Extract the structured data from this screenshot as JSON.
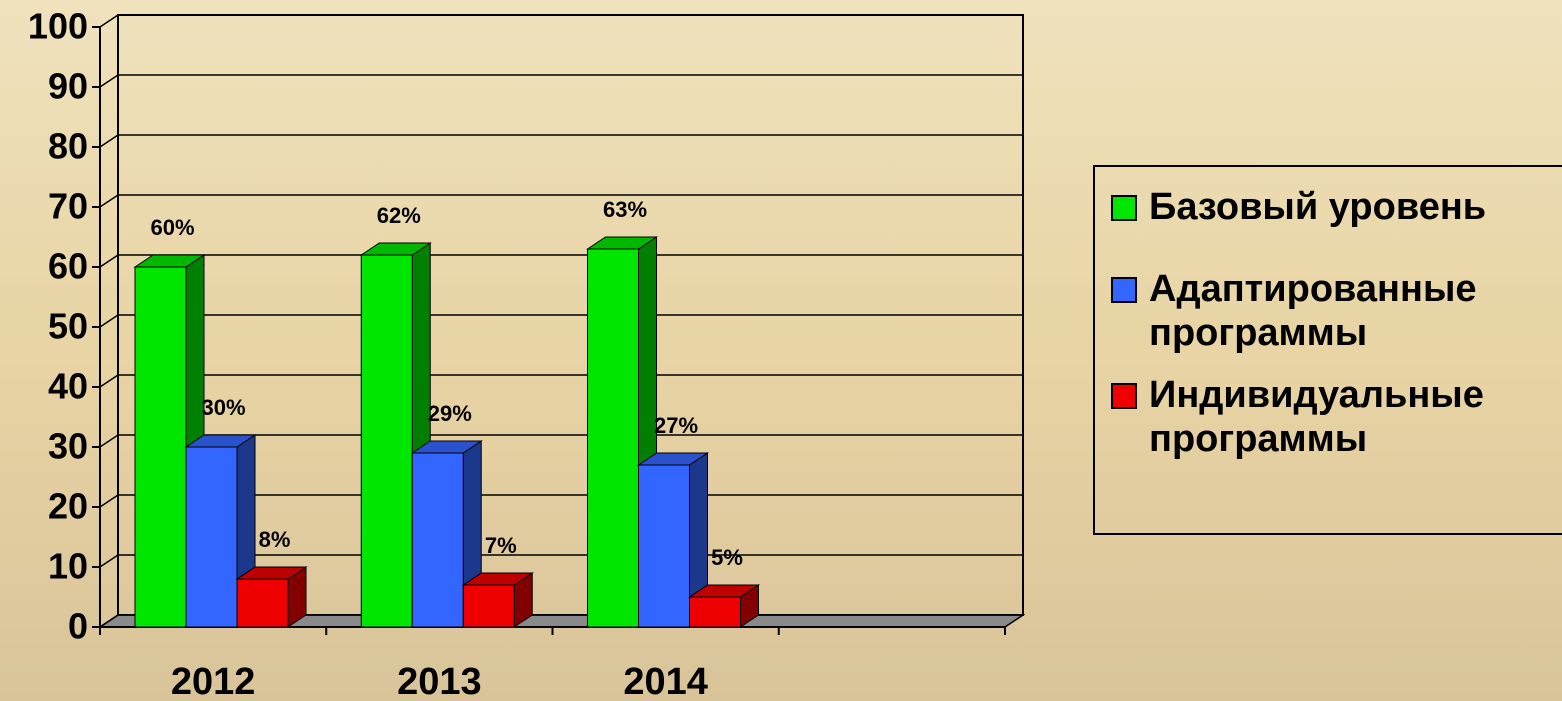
{
  "chart_data": {
    "type": "bar3d",
    "categories": [
      "2012",
      "2013",
      "2014"
    ],
    "series": [
      {
        "name": "Базовый уровень",
        "color": "#00e600",
        "values": [
          60,
          62,
          63
        ],
        "value_labels": [
          "60%",
          "62%",
          "63%"
        ]
      },
      {
        "name": "Адаптированные программы",
        "color": "#3366ff",
        "values": [
          30,
          29,
          27
        ],
        "value_labels": [
          "30%",
          "29%",
          "27%"
        ]
      },
      {
        "name": "Индивидуальные программы",
        "color": "#ee0000",
        "values": [
          8,
          7,
          5
        ],
        "value_labels": [
          "8%",
          "7%",
          "5%"
        ]
      }
    ],
    "ylim": [
      0,
      100
    ],
    "yticks": [
      0,
      10,
      20,
      30,
      40,
      50,
      60,
      70,
      80,
      90,
      100
    ],
    "grid": true,
    "legend": "right"
  }
}
